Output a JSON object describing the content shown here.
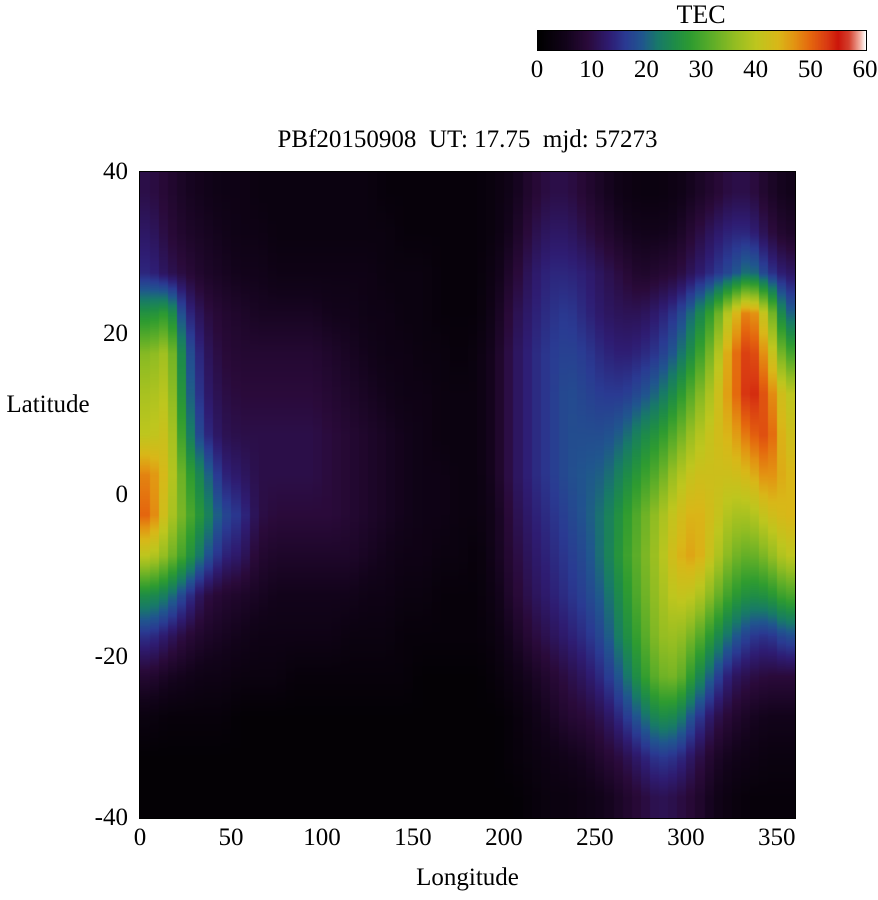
{
  "title": "PBf20150908  UT: 17.75  mjd: 57273",
  "colorbar": {
    "label": "TEC",
    "min": 0,
    "max": 60,
    "ticks": [
      0,
      10,
      20,
      30,
      40,
      50,
      60
    ],
    "stops": [
      [
        0,
        "#000000"
      ],
      [
        5,
        "#12031a"
      ],
      [
        9,
        "#2a0a3a"
      ],
      [
        13,
        "#2e1c72"
      ],
      [
        16,
        "#2a3a92"
      ],
      [
        19,
        "#20568e"
      ],
      [
        22,
        "#187a68"
      ],
      [
        25,
        "#1e8c48"
      ],
      [
        28,
        "#2f9c30"
      ],
      [
        32,
        "#5fae28"
      ],
      [
        36,
        "#93bd22"
      ],
      [
        40,
        "#bec61e"
      ],
      [
        44,
        "#d9b718"
      ],
      [
        47,
        "#e39312"
      ],
      [
        50,
        "#e4650e"
      ],
      [
        53,
        "#d93a12"
      ],
      [
        55,
        "#cc150a"
      ],
      [
        57,
        "#d4402e"
      ],
      [
        59,
        "#f2b0a2"
      ],
      [
        60,
        "#ffffff"
      ]
    ]
  },
  "chart_data": {
    "type": "heatmap",
    "title": "PBf20150908  UT: 17.75  mjd: 57273",
    "xlabel": "Longitude",
    "ylabel": "Latitude",
    "xlim": [
      0,
      360
    ],
    "ylim": [
      -40,
      40
    ],
    "xticks": [
      0,
      50,
      100,
      150,
      200,
      250,
      300,
      350
    ],
    "yticks": [
      40,
      20,
      0,
      -20,
      -40
    ],
    "value_label": "TEC",
    "value_range": [
      0,
      60
    ],
    "lon_centers": [
      5,
      15,
      25,
      35,
      45,
      55,
      65,
      75,
      85,
      95,
      105,
      115,
      125,
      135,
      145,
      155,
      165,
      175,
      185,
      195,
      205,
      215,
      225,
      235,
      245,
      255,
      265,
      275,
      285,
      295,
      305,
      315,
      325,
      335,
      345,
      355
    ],
    "lat_centers": [
      37.5,
      32.5,
      27.5,
      22.5,
      17.5,
      12.5,
      7.5,
      2.5,
      -2.5,
      -7.5,
      -12.5,
      -17.5,
      -22.5,
      -27.5,
      -32.5,
      -37.5
    ],
    "values": [
      [
        10,
        8,
        6,
        5,
        4,
        4,
        3,
        3,
        3,
        3,
        3,
        3,
        3,
        2,
        2,
        2,
        2,
        2,
        2,
        3,
        5,
        8,
        10,
        10,
        8,
        6,
        4,
        3,
        3,
        4,
        6,
        8,
        10,
        10,
        7,
        5
      ],
      [
        12,
        9,
        7,
        6,
        5,
        4,
        4,
        3,
        3,
        3,
        3,
        3,
        3,
        3,
        2,
        2,
        2,
        2,
        2,
        3,
        6,
        10,
        12,
        12,
        10,
        8,
        6,
        5,
        5,
        6,
        9,
        12,
        14,
        14,
        10,
        7
      ],
      [
        14,
        11,
        9,
        7,
        6,
        5,
        5,
        4,
        4,
        4,
        4,
        4,
        4,
        3,
        3,
        3,
        2,
        2,
        2,
        4,
        8,
        12,
        14,
        14,
        13,
        11,
        9,
        7,
        8,
        9,
        12,
        15,
        18,
        22,
        16,
        12
      ],
      [
        26,
        28,
        15,
        10,
        8,
        7,
        6,
        6,
        6,
        6,
        5,
        5,
        4,
        4,
        3,
        3,
        2,
        2,
        2,
        5,
        10,
        13,
        15,
        16,
        14,
        12,
        11,
        11,
        13,
        16,
        22,
        30,
        42,
        50,
        38,
        20
      ],
      [
        35,
        38,
        20,
        12,
        9,
        8,
        8,
        8,
        8,
        8,
        7,
        6,
        5,
        4,
        4,
        3,
        3,
        2,
        3,
        6,
        11,
        14,
        16,
        17,
        16,
        14,
        13,
        14,
        16,
        20,
        27,
        36,
        48,
        54,
        45,
        30
      ],
      [
        38,
        40,
        22,
        13,
        10,
        9,
        9,
        9,
        9,
        9,
        8,
        7,
        6,
        5,
        4,
        4,
        3,
        3,
        3,
        6,
        11,
        14,
        16,
        18,
        17,
        16,
        16,
        18,
        21,
        26,
        33,
        40,
        48,
        55,
        50,
        40
      ],
      [
        40,
        42,
        25,
        15,
        11,
        10,
        10,
        10,
        10,
        10,
        9,
        8,
        7,
        6,
        5,
        4,
        3,
        3,
        3,
        6,
        11,
        14,
        16,
        18,
        18,
        18,
        20,
        24,
        27,
        32,
        38,
        42,
        45,
        50,
        52,
        42
      ],
      [
        48,
        42,
        30,
        22,
        14,
        12,
        10,
        10,
        10,
        10,
        9,
        8,
        7,
        6,
        5,
        4,
        4,
        3,
        3,
        6,
        11,
        14,
        16,
        18,
        19,
        20,
        24,
        28,
        32,
        38,
        42,
        42,
        42,
        44,
        48,
        44
      ],
      [
        50,
        40,
        32,
        25,
        18,
        15,
        10,
        9,
        9,
        9,
        9,
        8,
        7,
        6,
        5,
        4,
        4,
        3,
        3,
        5,
        10,
        13,
        15,
        17,
        19,
        22,
        27,
        32,
        37,
        42,
        45,
        42,
        38,
        38,
        42,
        44
      ],
      [
        40,
        35,
        28,
        20,
        14,
        12,
        8,
        7,
        7,
        7,
        7,
        7,
        6,
        5,
        4,
        4,
        3,
        3,
        2,
        5,
        9,
        12,
        14,
        16,
        18,
        22,
        28,
        33,
        38,
        44,
        46,
        40,
        34,
        32,
        35,
        40
      ],
      [
        25,
        22,
        16,
        10,
        8,
        7,
        6,
        5,
        5,
        5,
        5,
        5,
        4,
        4,
        3,
        3,
        2,
        2,
        2,
        4,
        8,
        11,
        13,
        15,
        17,
        20,
        26,
        32,
        37,
        41,
        40,
        34,
        28,
        25,
        26,
        30
      ],
      [
        15,
        12,
        9,
        7,
        6,
        5,
        4,
        4,
        4,
        4,
        4,
        3,
        3,
        3,
        2,
        2,
        2,
        2,
        2,
        3,
        6,
        9,
        11,
        13,
        15,
        18,
        24,
        30,
        36,
        37,
        33,
        26,
        20,
        16,
        15,
        18
      ],
      [
        8,
        6,
        5,
        4,
        4,
        3,
        3,
        3,
        2,
        2,
        2,
        2,
        2,
        2,
        2,
        1,
        1,
        1,
        1,
        2,
        4,
        6,
        8,
        10,
        12,
        15,
        20,
        27,
        33,
        34,
        26,
        18,
        12,
        10,
        9,
        9
      ],
      [
        3,
        2,
        2,
        2,
        2,
        1,
        1,
        1,
        1,
        1,
        1,
        1,
        1,
        1,
        1,
        1,
        1,
        1,
        1,
        1,
        2,
        4,
        6,
        8,
        9,
        11,
        15,
        20,
        25,
        24,
        17,
        11,
        8,
        6,
        5,
        5
      ],
      [
        1,
        1,
        1,
        1,
        1,
        1,
        1,
        1,
        1,
        1,
        1,
        1,
        1,
        1,
        1,
        1,
        1,
        1,
        1,
        1,
        2,
        3,
        4,
        5,
        6,
        8,
        10,
        13,
        16,
        15,
        11,
        7,
        5,
        4,
        3,
        3
      ],
      [
        1,
        1,
        1,
        1,
        1,
        1,
        1,
        1,
        1,
        1,
        1,
        1,
        1,
        1,
        1,
        1,
        1,
        1,
        1,
        1,
        1,
        2,
        3,
        3,
        4,
        5,
        7,
        9,
        11,
        10,
        8,
        5,
        3,
        2,
        2,
        2
      ]
    ]
  }
}
